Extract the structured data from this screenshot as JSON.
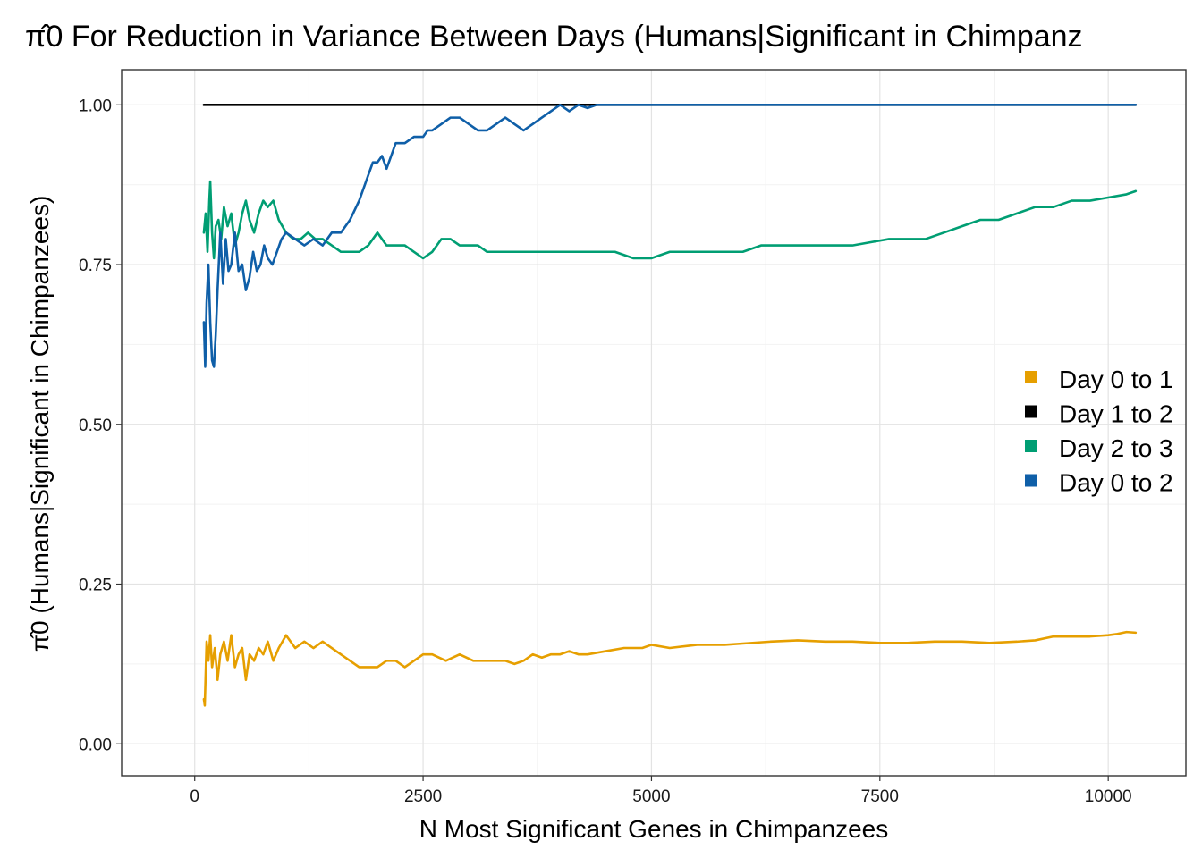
{
  "chart_data": {
    "type": "line",
    "title": "π̂0 For Reduction in Variance Between Days (Humans|Significant in Chimpanz",
    "xlabel": "N Most Significant Genes in Chimpanzees",
    "ylabel": "π̂0 (Humans|Significant in Chimpanzees)",
    "xlim": [
      -800,
      10850
    ],
    "ylim": [
      -0.05,
      1.055
    ],
    "x_ticks": [
      0,
      2500,
      5000,
      7500,
      10000
    ],
    "x_tick_labels": [
      "0",
      "2500",
      "5000",
      "7500",
      "10000"
    ],
    "y_ticks": [
      0,
      0.25,
      0.5,
      0.75,
      1
    ],
    "y_tick_labels": [
      "0.00",
      "0.25",
      "0.50",
      "0.75",
      "1.00"
    ],
    "grid": true,
    "legend_position": "right",
    "series": [
      {
        "name": "Day 0 to 1",
        "color": "#E69F00",
        "points": [
          [
            100,
            0.07
          ],
          [
            110,
            0.06
          ],
          [
            130,
            0.16
          ],
          [
            150,
            0.13
          ],
          [
            170,
            0.17
          ],
          [
            190,
            0.12
          ],
          [
            220,
            0.15
          ],
          [
            250,
            0.1
          ],
          [
            280,
            0.14
          ],
          [
            320,
            0.16
          ],
          [
            360,
            0.13
          ],
          [
            400,
            0.17
          ],
          [
            440,
            0.12
          ],
          [
            480,
            0.14
          ],
          [
            520,
            0.15
          ],
          [
            560,
            0.1
          ],
          [
            600,
            0.14
          ],
          [
            650,
            0.13
          ],
          [
            700,
            0.15
          ],
          [
            750,
            0.14
          ],
          [
            800,
            0.16
          ],
          [
            860,
            0.13
          ],
          [
            920,
            0.15
          ],
          [
            1000,
            0.17
          ],
          [
            1100,
            0.15
          ],
          [
            1200,
            0.16
          ],
          [
            1300,
            0.15
          ],
          [
            1400,
            0.16
          ],
          [
            1500,
            0.15
          ],
          [
            1600,
            0.14
          ],
          [
            1700,
            0.13
          ],
          [
            1800,
            0.12
          ],
          [
            1900,
            0.12
          ],
          [
            2000,
            0.12
          ],
          [
            2100,
            0.13
          ],
          [
            2200,
            0.13
          ],
          [
            2300,
            0.12
          ],
          [
            2400,
            0.13
          ],
          [
            2500,
            0.14
          ],
          [
            2600,
            0.14
          ],
          [
            2750,
            0.13
          ],
          [
            2900,
            0.14
          ],
          [
            3050,
            0.13
          ],
          [
            3200,
            0.13
          ],
          [
            3400,
            0.13
          ],
          [
            3500,
            0.125
          ],
          [
            3600,
            0.13
          ],
          [
            3700,
            0.14
          ],
          [
            3800,
            0.135
          ],
          [
            3900,
            0.14
          ],
          [
            4000,
            0.14
          ],
          [
            4100,
            0.145
          ],
          [
            4200,
            0.14
          ],
          [
            4300,
            0.14
          ],
          [
            4500,
            0.145
          ],
          [
            4700,
            0.15
          ],
          [
            4900,
            0.15
          ],
          [
            5000,
            0.155
          ],
          [
            5200,
            0.15
          ],
          [
            5500,
            0.155
          ],
          [
            5800,
            0.155
          ],
          [
            6000,
            0.157
          ],
          [
            6300,
            0.16
          ],
          [
            6600,
            0.162
          ],
          [
            6900,
            0.16
          ],
          [
            7200,
            0.16
          ],
          [
            7500,
            0.158
          ],
          [
            7800,
            0.158
          ],
          [
            8100,
            0.16
          ],
          [
            8400,
            0.16
          ],
          [
            8700,
            0.158
          ],
          [
            9000,
            0.16
          ],
          [
            9200,
            0.162
          ],
          [
            9400,
            0.168
          ],
          [
            9600,
            0.168
          ],
          [
            9800,
            0.168
          ],
          [
            10000,
            0.17
          ],
          [
            10100,
            0.172
          ],
          [
            10200,
            0.175
          ],
          [
            10300,
            0.174
          ]
        ]
      },
      {
        "name": "Day 1 to 2",
        "color": "#000000",
        "points": [
          [
            100,
            1.0
          ],
          [
            10300,
            1.0
          ]
        ]
      },
      {
        "name": "Day 2 to 3",
        "color": "#009E73",
        "points": [
          [
            100,
            0.8
          ],
          [
            120,
            0.83
          ],
          [
            140,
            0.77
          ],
          [
            160,
            0.85
          ],
          [
            170,
            0.88
          ],
          [
            190,
            0.8
          ],
          [
            210,
            0.76
          ],
          [
            230,
            0.81
          ],
          [
            260,
            0.82
          ],
          [
            290,
            0.79
          ],
          [
            320,
            0.84
          ],
          [
            360,
            0.81
          ],
          [
            400,
            0.83
          ],
          [
            440,
            0.78
          ],
          [
            480,
            0.8
          ],
          [
            520,
            0.83
          ],
          [
            560,
            0.85
          ],
          [
            600,
            0.82
          ],
          [
            650,
            0.8
          ],
          [
            700,
            0.83
          ],
          [
            750,
            0.85
          ],
          [
            800,
            0.84
          ],
          [
            860,
            0.85
          ],
          [
            920,
            0.82
          ],
          [
            1000,
            0.8
          ],
          [
            1080,
            0.79
          ],
          [
            1160,
            0.79
          ],
          [
            1240,
            0.8
          ],
          [
            1320,
            0.79
          ],
          [
            1400,
            0.79
          ],
          [
            1500,
            0.78
          ],
          [
            1600,
            0.77
          ],
          [
            1700,
            0.77
          ],
          [
            1800,
            0.77
          ],
          [
            1900,
            0.78
          ],
          [
            2000,
            0.8
          ],
          [
            2100,
            0.78
          ],
          [
            2200,
            0.78
          ],
          [
            2300,
            0.78
          ],
          [
            2400,
            0.77
          ],
          [
            2500,
            0.76
          ],
          [
            2600,
            0.77
          ],
          [
            2700,
            0.79
          ],
          [
            2800,
            0.79
          ],
          [
            2900,
            0.78
          ],
          [
            3000,
            0.78
          ],
          [
            3100,
            0.78
          ],
          [
            3200,
            0.77
          ],
          [
            3300,
            0.77
          ],
          [
            3400,
            0.77
          ],
          [
            3600,
            0.77
          ],
          [
            3800,
            0.77
          ],
          [
            4000,
            0.77
          ],
          [
            4200,
            0.77
          ],
          [
            4400,
            0.77
          ],
          [
            4600,
            0.77
          ],
          [
            4800,
            0.76
          ],
          [
            5000,
            0.76
          ],
          [
            5200,
            0.77
          ],
          [
            5400,
            0.77
          ],
          [
            5600,
            0.77
          ],
          [
            5800,
            0.77
          ],
          [
            6000,
            0.77
          ],
          [
            6200,
            0.78
          ],
          [
            6400,
            0.78
          ],
          [
            6600,
            0.78
          ],
          [
            6800,
            0.78
          ],
          [
            7000,
            0.78
          ],
          [
            7200,
            0.78
          ],
          [
            7400,
            0.785
          ],
          [
            7600,
            0.79
          ],
          [
            7800,
            0.79
          ],
          [
            8000,
            0.79
          ],
          [
            8200,
            0.8
          ],
          [
            8400,
            0.81
          ],
          [
            8600,
            0.82
          ],
          [
            8800,
            0.82
          ],
          [
            9000,
            0.83
          ],
          [
            9200,
            0.84
          ],
          [
            9400,
            0.84
          ],
          [
            9600,
            0.85
          ],
          [
            9800,
            0.85
          ],
          [
            10000,
            0.855
          ],
          [
            10200,
            0.86
          ],
          [
            10300,
            0.865
          ]
        ]
      },
      {
        "name": "Day 0 to 2",
        "color": "#0F5FA8",
        "points": [
          [
            100,
            0.66
          ],
          [
            115,
            0.59
          ],
          [
            130,
            0.69
          ],
          [
            150,
            0.75
          ],
          [
            170,
            0.66
          ],
          [
            190,
            0.6
          ],
          [
            210,
            0.59
          ],
          [
            230,
            0.64
          ],
          [
            250,
            0.71
          ],
          [
            280,
            0.8
          ],
          [
            310,
            0.72
          ],
          [
            340,
            0.79
          ],
          [
            370,
            0.74
          ],
          [
            400,
            0.75
          ],
          [
            440,
            0.8
          ],
          [
            480,
            0.74
          ],
          [
            520,
            0.75
          ],
          [
            560,
            0.71
          ],
          [
            600,
            0.73
          ],
          [
            640,
            0.77
          ],
          [
            680,
            0.74
          ],
          [
            720,
            0.75
          ],
          [
            760,
            0.78
          ],
          [
            800,
            0.76
          ],
          [
            850,
            0.75
          ],
          [
            900,
            0.77
          ],
          [
            950,
            0.79
          ],
          [
            1000,
            0.8
          ],
          [
            1100,
            0.79
          ],
          [
            1200,
            0.78
          ],
          [
            1300,
            0.79
          ],
          [
            1400,
            0.78
          ],
          [
            1500,
            0.8
          ],
          [
            1600,
            0.8
          ],
          [
            1700,
            0.82
          ],
          [
            1800,
            0.85
          ],
          [
            1850,
            0.87
          ],
          [
            1900,
            0.89
          ],
          [
            1950,
            0.91
          ],
          [
            2000,
            0.91
          ],
          [
            2050,
            0.92
          ],
          [
            2100,
            0.9
          ],
          [
            2150,
            0.92
          ],
          [
            2200,
            0.94
          ],
          [
            2300,
            0.94
          ],
          [
            2400,
            0.95
          ],
          [
            2500,
            0.95
          ],
          [
            2550,
            0.96
          ],
          [
            2600,
            0.96
          ],
          [
            2700,
            0.97
          ],
          [
            2800,
            0.98
          ],
          [
            2900,
            0.98
          ],
          [
            3000,
            0.97
          ],
          [
            3100,
            0.96
          ],
          [
            3200,
            0.96
          ],
          [
            3300,
            0.97
          ],
          [
            3400,
            0.98
          ],
          [
            3500,
            0.97
          ],
          [
            3600,
            0.96
          ],
          [
            3700,
            0.97
          ],
          [
            3800,
            0.98
          ],
          [
            3900,
            0.99
          ],
          [
            4000,
            1.0
          ],
          [
            4100,
            0.99
          ],
          [
            4200,
            1.0
          ],
          [
            4300,
            0.995
          ],
          [
            4400,
            1.0
          ],
          [
            5000,
            1.0
          ],
          [
            10300,
            1.0
          ]
        ]
      }
    ]
  }
}
